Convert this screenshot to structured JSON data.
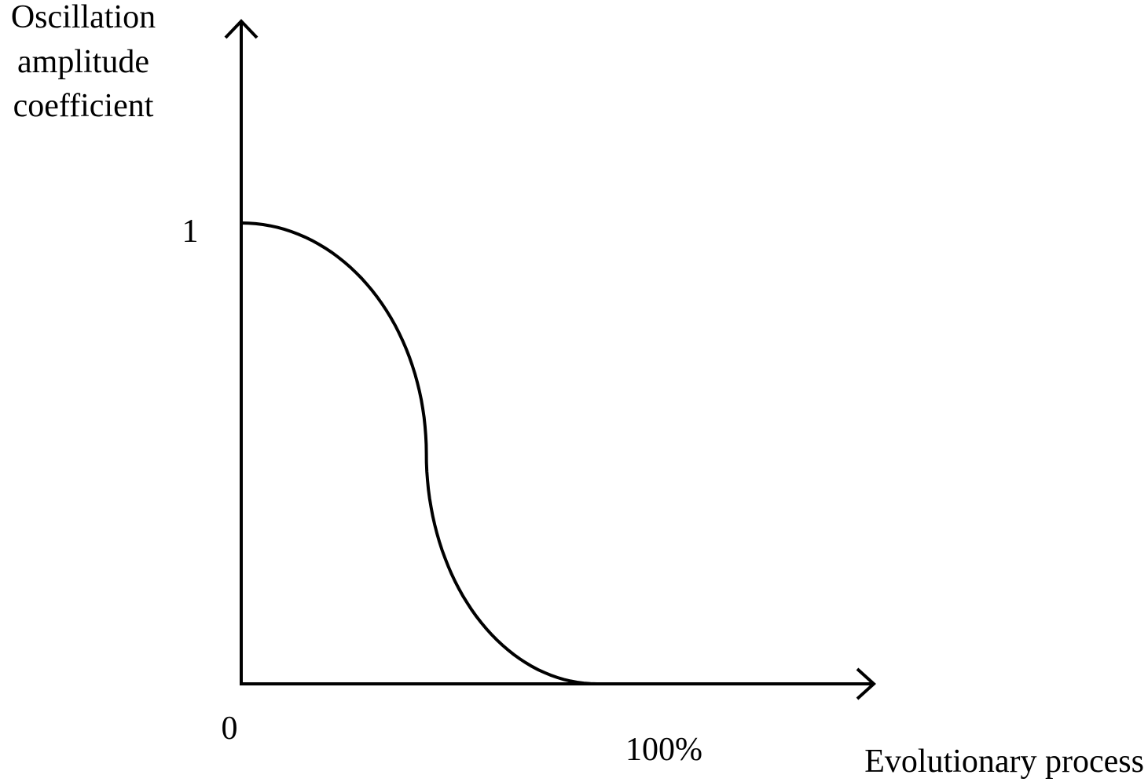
{
  "chart_data": {
    "type": "line",
    "title": "",
    "ylabel": [
      "Oscillation",
      "amplitude",
      "coefficient"
    ],
    "xlabel": "Evolutionary process",
    "x_ticks": [
      {
        "value": 0,
        "label": "0"
      },
      {
        "value": 100,
        "label": "100%"
      }
    ],
    "y_ticks": [
      {
        "value": 1,
        "label": "1"
      }
    ],
    "x_unit": "%",
    "xlim": [
      0,
      178
    ],
    "ylim": [
      0,
      1.5
    ],
    "grid": false,
    "legend": "none",
    "series": [
      {
        "x": [
          0,
          5,
          10,
          15,
          20,
          25,
          30,
          35,
          40,
          45,
          50,
          51,
          52,
          55,
          60,
          65,
          70,
          75,
          80,
          85,
          90,
          95,
          100
        ],
        "y": [
          1.0,
          0.994,
          0.977,
          0.949,
          0.91,
          0.857,
          0.789,
          0.701,
          0.587,
          0.436,
          0.5,
          0.5,
          0.47,
          0.36,
          0.24,
          0.155,
          0.09,
          0.045,
          0.018,
          0.005,
          0.001,
          0.0,
          0.0
        ],
        "color": "#000000"
      }
    ],
    "flat_after": 100
  }
}
